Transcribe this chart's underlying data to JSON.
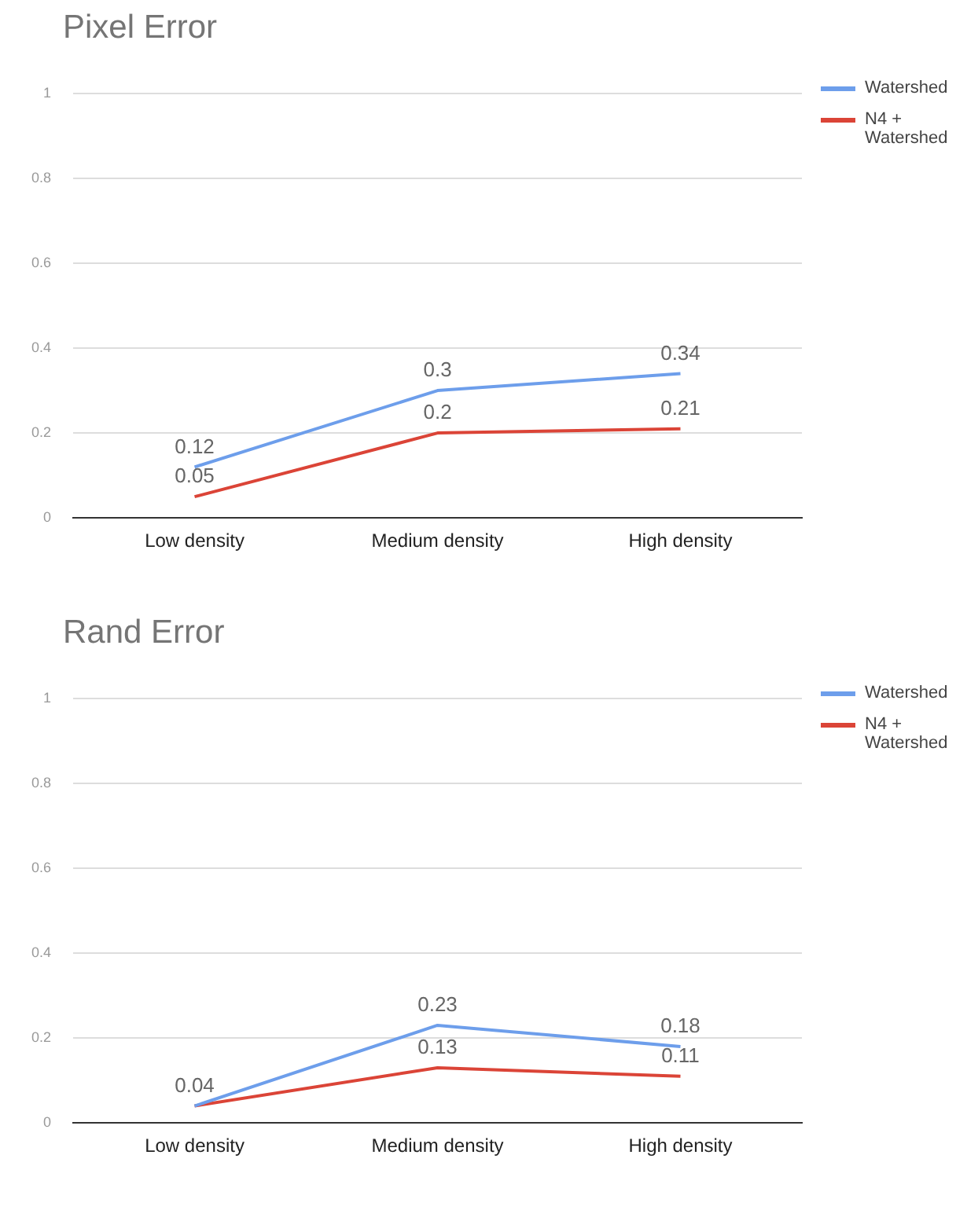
{
  "chart_data": [
    {
      "type": "line",
      "title": "Pixel Error",
      "categories": [
        "Low density",
        "Medium density",
        "High density"
      ],
      "series": [
        {
          "name": "Watershed",
          "color": "#6d9eeb",
          "values": [
            0.12,
            0.3,
            0.34
          ]
        },
        {
          "name": "N4 + Watershed",
          "color": "#db4437",
          "values": [
            0.05,
            0.2,
            0.21
          ]
        }
      ],
      "ylim": [
        0,
        1
      ],
      "yticks": [
        0,
        0.2,
        0.4,
        0.6,
        0.8,
        1
      ],
      "grid": "y",
      "legend": "right",
      "marker": "none",
      "line_style": "solid",
      "data_labels": true
    },
    {
      "type": "line",
      "title": "Rand Error",
      "categories": [
        "Low density",
        "Medium density",
        "High density"
      ],
      "series": [
        {
          "name": "Watershed",
          "color": "#6d9eeb",
          "values": [
            0.04,
            0.23,
            0.18
          ],
          "value_labels": [
            "0.04",
            "0.23",
            "0.18"
          ]
        },
        {
          "name": "N4 + Watershed",
          "color": "#db4437",
          "values": [
            0.04,
            0.13,
            0.11
          ],
          "value_labels": [
            null,
            "0.13",
            "0.11"
          ]
        }
      ],
      "ylim": [
        0,
        1
      ],
      "yticks": [
        0,
        0.2,
        0.4,
        0.6,
        0.8,
        1
      ],
      "grid": "y",
      "legend": "right",
      "marker": "none",
      "line_style": "solid"
    }
  ]
}
